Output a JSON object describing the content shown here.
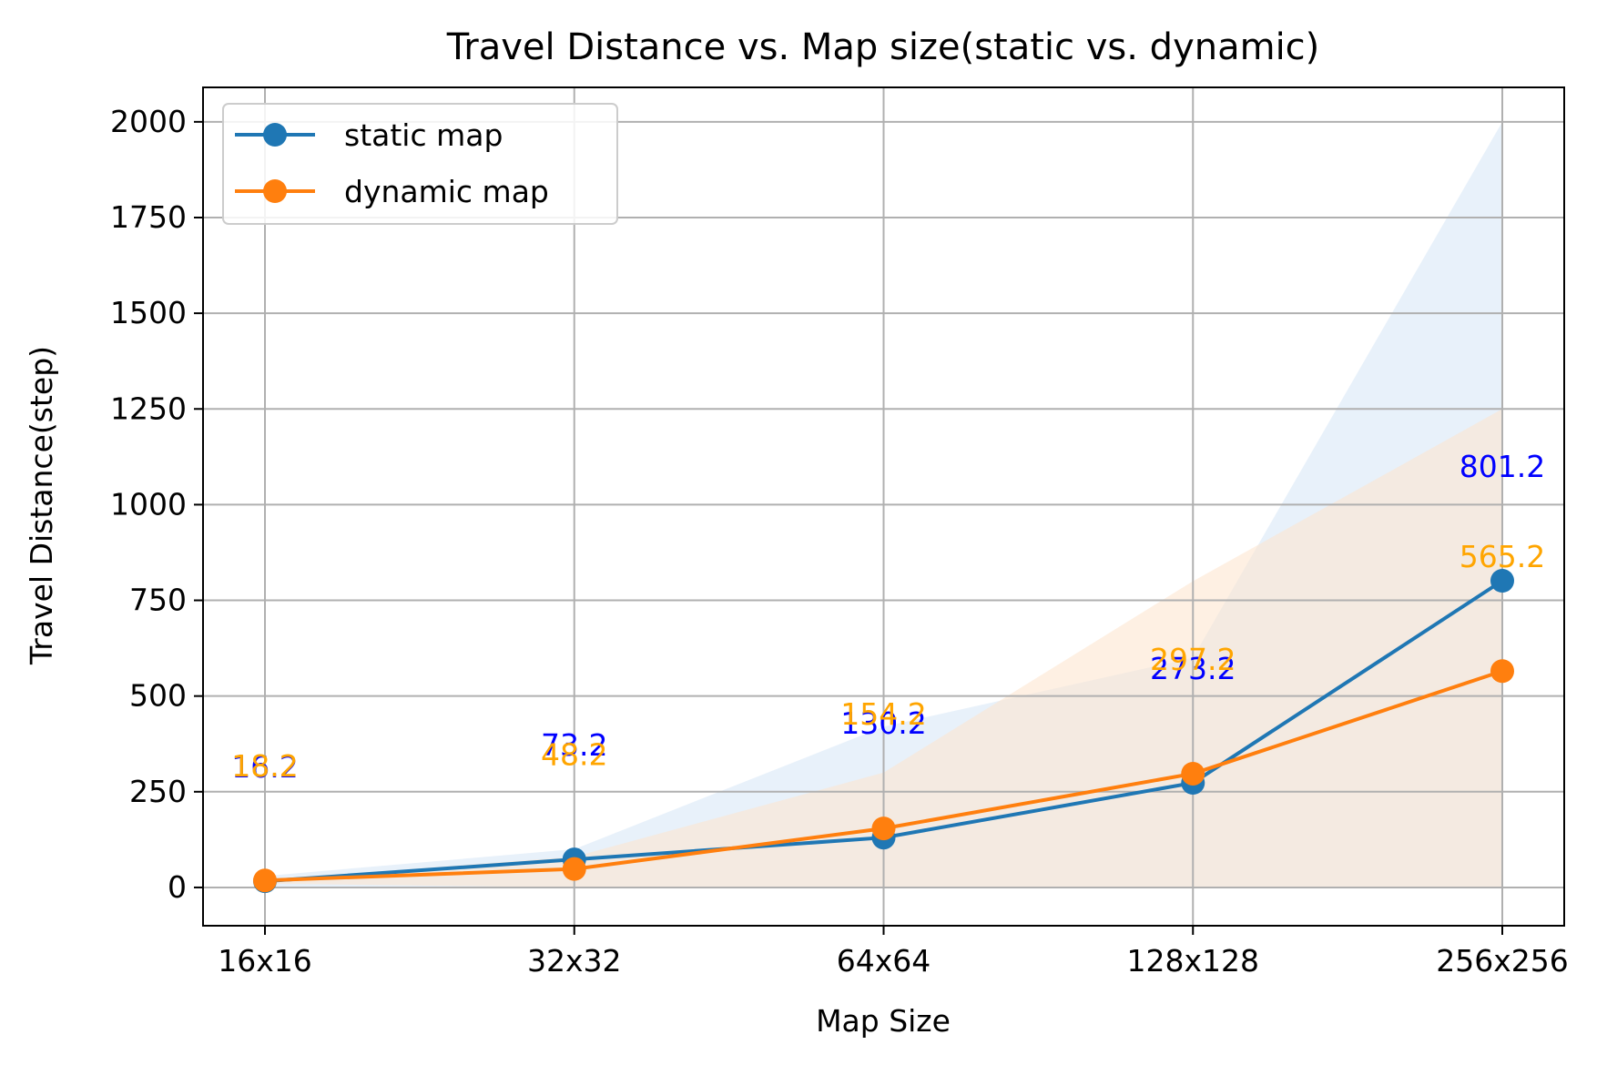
{
  "chart_data": {
    "type": "line",
    "title": "Travel Distance vs. Map size(static vs. dynamic)",
    "xlabel": "Map Size",
    "ylabel": "Travel Distance(step)",
    "categories": [
      "16x16",
      "32x32",
      "64x64",
      "128x128",
      "256x256"
    ],
    "ylim": [
      -100,
      2090
    ],
    "yticks": [
      0,
      250,
      500,
      750,
      1000,
      1250,
      1500,
      1750,
      2000
    ],
    "grid": true,
    "legend_position": "top-left",
    "series": [
      {
        "name": "static map",
        "color": "#1f77b4",
        "label_color": "#0000ff",
        "values": [
          16.2,
          73.2,
          130.2,
          273.2,
          801.2
        ],
        "labels": [
          "16.2",
          "73.2",
          "130.2",
          "273.2",
          "801.2"
        ],
        "band_lower": [
          0,
          0,
          0,
          0,
          0
        ],
        "band_upper": [
          30,
          100,
          420,
          600,
          2000
        ],
        "band_color": "#d6e6f5"
      },
      {
        "name": "dynamic map",
        "color": "#ff7f0e",
        "label_color": "#ffa500",
        "values": [
          18.2,
          48.2,
          154.2,
          297.2,
          565.2
        ],
        "labels": [
          "18.2",
          "48.2",
          "154.2",
          "297.2",
          "565.2"
        ],
        "band_lower": [
          10,
          0,
          0,
          0,
          0
        ],
        "band_upper": [
          20,
          80,
          300,
          800,
          1250
        ],
        "band_color": "#fde3cc"
      }
    ]
  }
}
